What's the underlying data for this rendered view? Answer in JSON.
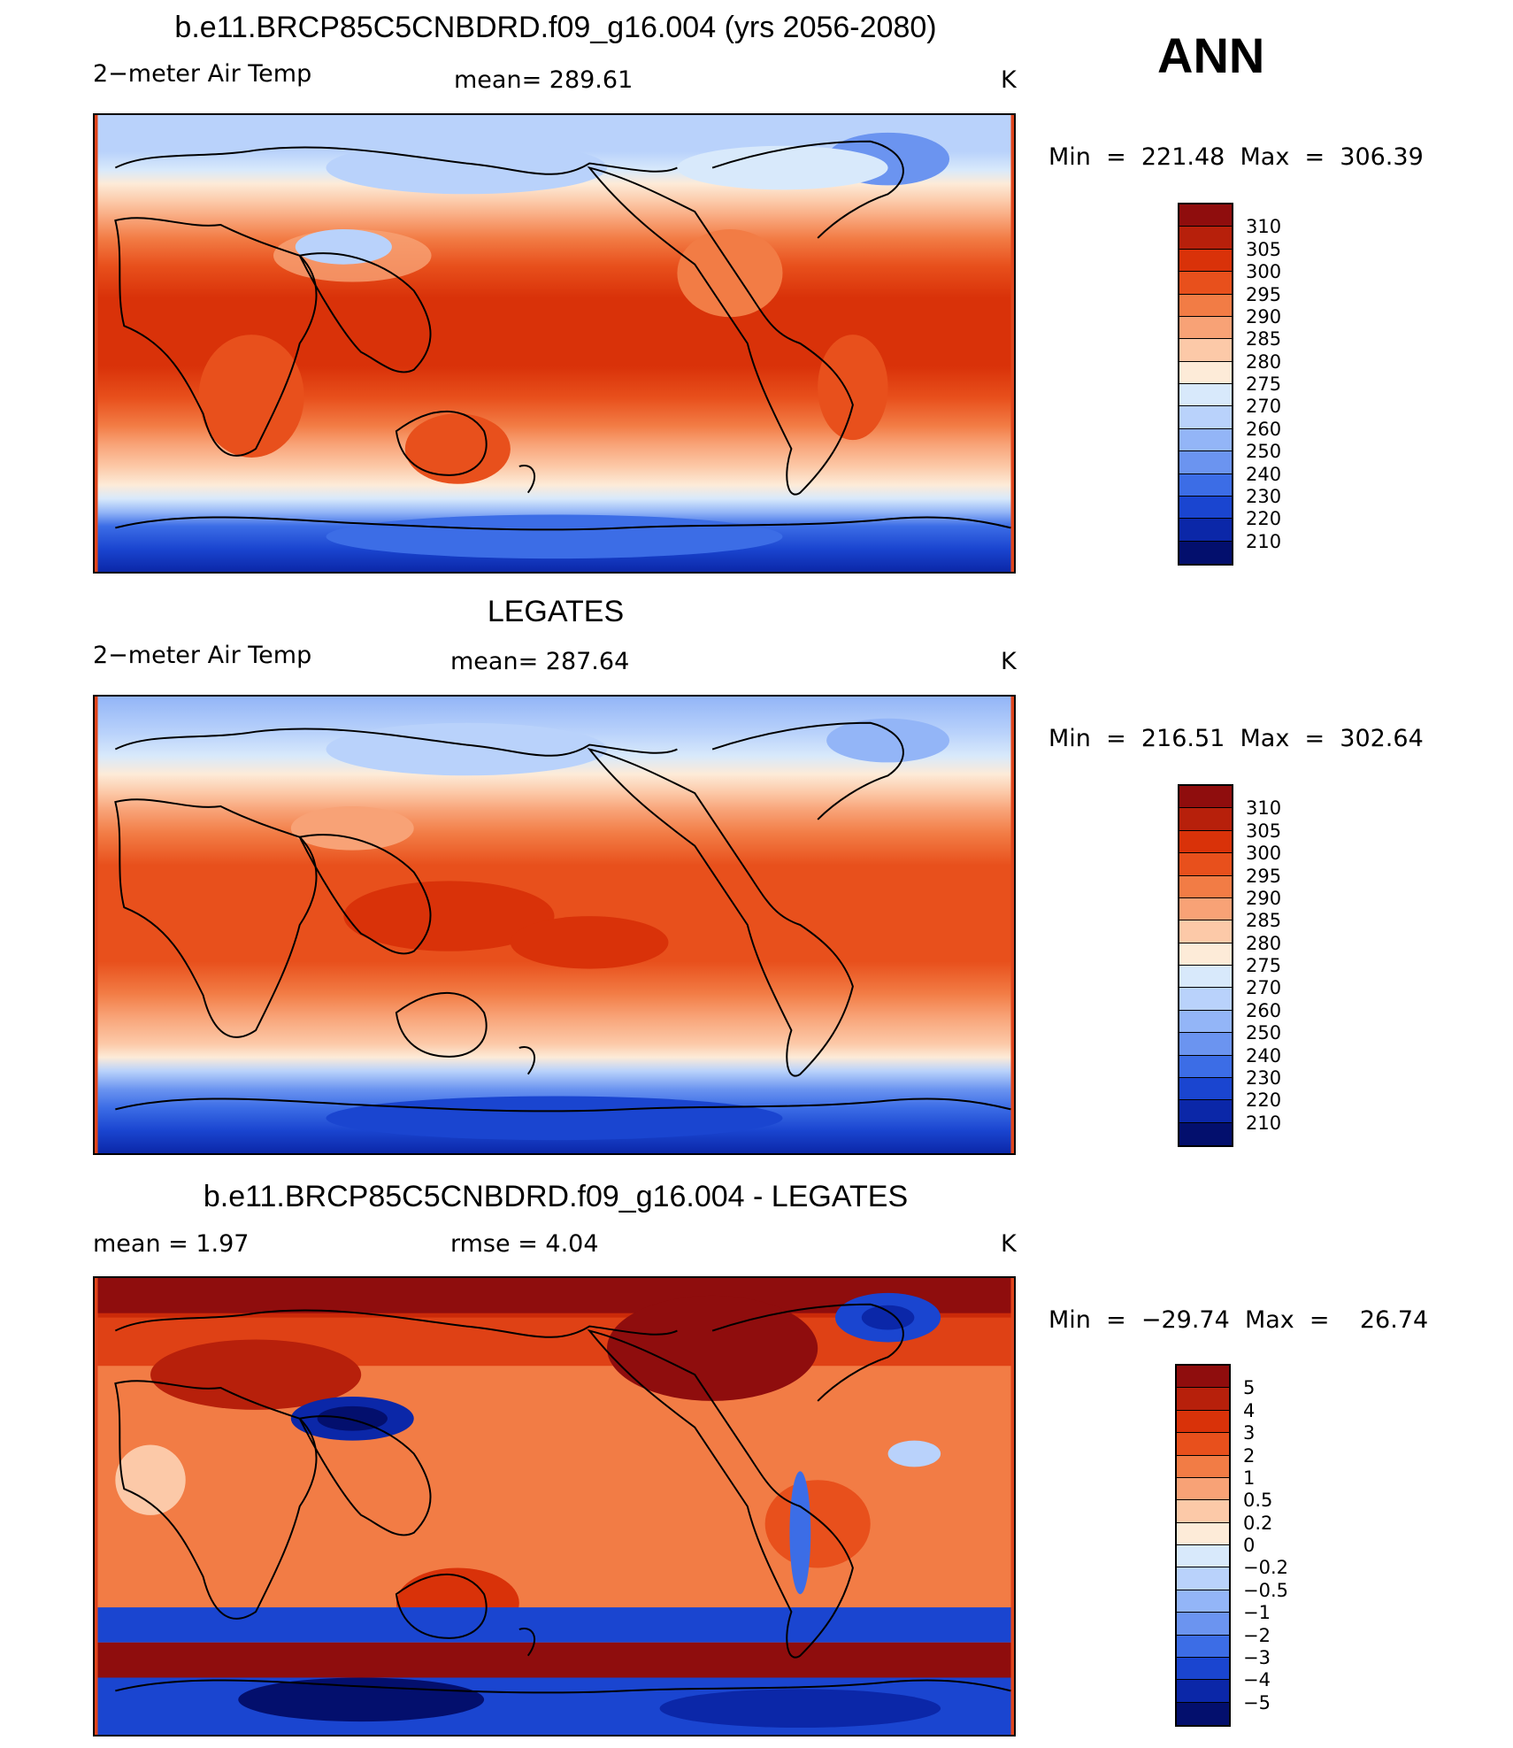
{
  "season": "ANN",
  "panels": [
    {
      "id": "model",
      "title": "b.e11.BRCP85C5CNBDRD.f09_g16.004 (yrs 2056-2080)",
      "left_label": "2−meter Air Temp",
      "center_label": "mean=  289.61",
      "units": "K",
      "minmax": "Min  =  221.48  Max  =  306.39",
      "colorbar": {
        "levels": [
          "310",
          "305",
          "300",
          "295",
          "290",
          "285",
          "280",
          "275",
          "270",
          "260",
          "250",
          "240",
          "230",
          "220",
          "210"
        ],
        "colors": [
          "#8f0d0d",
          "#b7200b",
          "#d93209",
          "#e8501c",
          "#f27c45",
          "#f8a276",
          "#fcc9a8",
          "#fdebd8",
          "#d8e9fb",
          "#b9d2fb",
          "#93b5f7",
          "#6b94f0",
          "#3c6de6",
          "#1a45d0",
          "#0b27a8",
          "#030f6d"
        ]
      }
    },
    {
      "id": "obs",
      "title": "LEGATES",
      "left_label": "2−meter Air Temp",
      "center_label": "mean=  287.64",
      "units": "K",
      "minmax": "Min  =  216.51  Max  =  302.64",
      "colorbar": {
        "levels": [
          "310",
          "305",
          "300",
          "295",
          "290",
          "285",
          "280",
          "275",
          "270",
          "260",
          "250",
          "240",
          "230",
          "220",
          "210"
        ],
        "colors": [
          "#8f0d0d",
          "#b7200b",
          "#d93209",
          "#e8501c",
          "#f27c45",
          "#f8a276",
          "#fcc9a8",
          "#fdebd8",
          "#d8e9fb",
          "#b9d2fb",
          "#93b5f7",
          "#6b94f0",
          "#3c6de6",
          "#1a45d0",
          "#0b27a8",
          "#030f6d"
        ]
      }
    },
    {
      "id": "diff",
      "title": "b.e11.BRCP85C5CNBDRD.f09_g16.004 - LEGATES",
      "left_label": "mean =     1.97",
      "center_label": "rmse =     4.04",
      "units": "K",
      "minmax": "Min  =  −29.74  Max  =    26.74",
      "colorbar": {
        "levels": [
          "5",
          "4",
          "3",
          "2",
          "1",
          "0.5",
          "0.2",
          "0",
          "−0.2",
          "−0.5",
          "−1",
          "−2",
          "−3",
          "−4",
          "−5"
        ],
        "colors": [
          "#8f0d0d",
          "#b7200b",
          "#d93209",
          "#e8501c",
          "#f27c45",
          "#f8a276",
          "#fcc9a8",
          "#fdebd8",
          "#d8e9fb",
          "#b9d2fb",
          "#93b5f7",
          "#6b94f0",
          "#3c6de6",
          "#1a45d0",
          "#0b27a8",
          "#030f6d"
        ]
      }
    }
  ]
}
